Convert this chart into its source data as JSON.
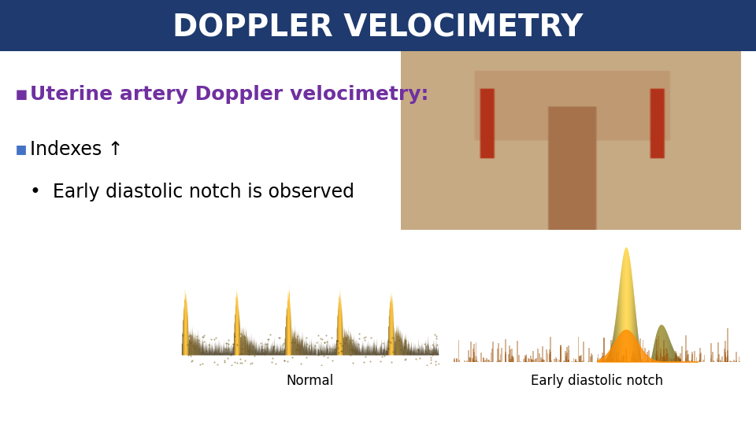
{
  "title": "DOPPLER VELOCIMETRY",
  "title_bg": "#1e3a6e",
  "title_color": "#ffffff",
  "title_fontsize": 28,
  "slide_bg": "#ffffff",
  "bullet1_text": "Uterine artery Doppler velocimetry:",
  "bullet1_color": "#7030a0",
  "bullet1_fontsize": 18,
  "bullet2_text": "Indexes ↑",
  "bullet2_color": "#000000",
  "bullet2_fontsize": 17,
  "bullet3_text": "Early diastolic notch is observed",
  "bullet3_color": "#000000",
  "bullet3_fontsize": 17,
  "label_normal": "Normal",
  "label_notch": "Early diastolic notch",
  "label_fontsize": 12,
  "label_color": "#000000"
}
